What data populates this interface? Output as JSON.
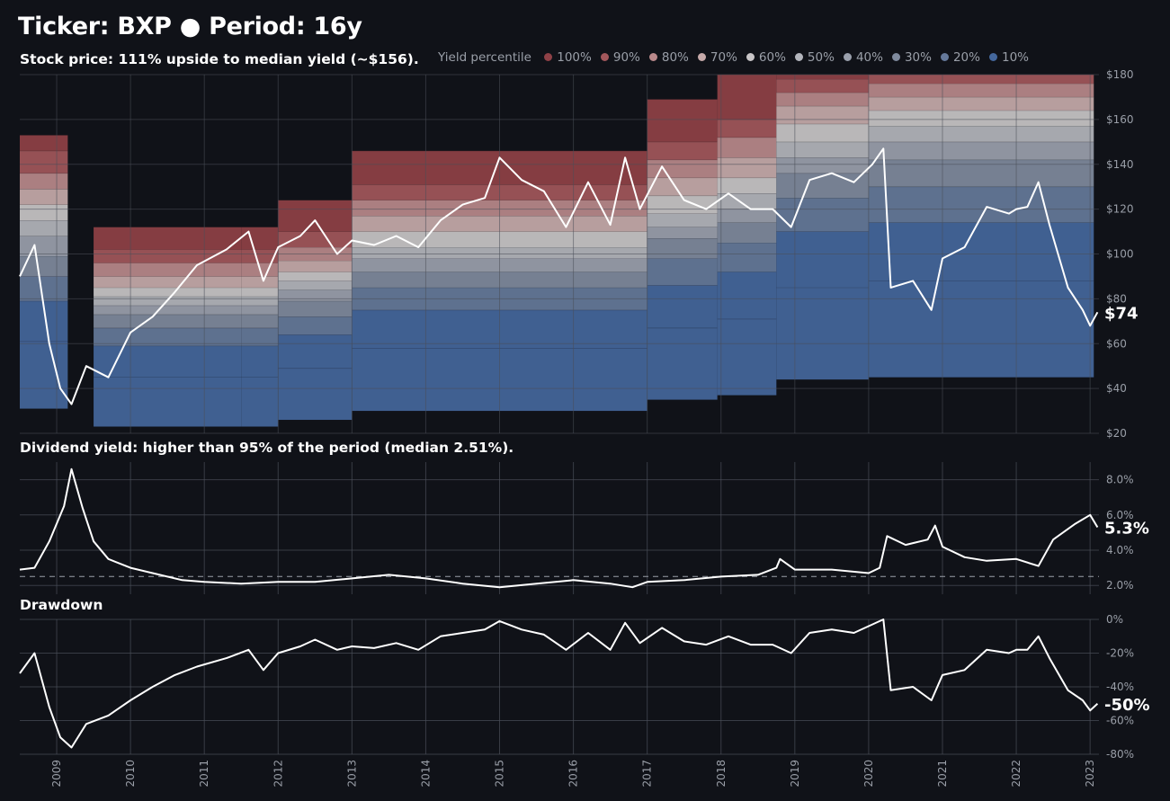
{
  "title": "Ticker: BXP  ●  Period: 16y",
  "panels": {
    "price_subtitle": "Stock price:  111% upside to median yield (~$156).",
    "yield_subtitle": "Dividend yield: higher than 95% of the period (median 2.51%).",
    "drawdown_subtitle": "Drawdown"
  },
  "legend": {
    "title": "Yield percentile",
    "items": [
      {
        "label": "100%",
        "color": "#8f4147"
      },
      {
        "label": "90%",
        "color": "#a2575b"
      },
      {
        "label": "80%",
        "color": "#b9898b"
      },
      {
        "label": "70%",
        "color": "#c6aaaa"
      },
      {
        "label": "60%",
        "color": "#c8c5c7"
      },
      {
        "label": "50%",
        "color": "#b3b5bc"
      },
      {
        "label": "40%",
        "color": "#9aa0ac"
      },
      {
        "label": "30%",
        "color": "#7f8a9d"
      },
      {
        "label": "20%",
        "color": "#65799a"
      },
      {
        "label": "10%",
        "color": "#44679c"
      }
    ]
  },
  "chart_data": [
    {
      "type": "line",
      "title": "Stock price:  111% upside to median yield (~$156).",
      "ylim": [
        20,
        180
      ],
      "yticks": [
        "$20",
        "$40",
        "$60",
        "$80",
        "$100",
        "$120",
        "$140",
        "$160",
        "$180"
      ],
      "last_label": "$74",
      "x_ticks": [
        "2009",
        "2010",
        "2011",
        "2012",
        "2013",
        "2014",
        "2015",
        "2016",
        "2017",
        "2018",
        "2019",
        "2020",
        "2021",
        "2022",
        "2023"
      ],
      "series": [
        {
          "x": [
            2008.5,
            2008.7,
            2008.9,
            2009.05,
            2009.2,
            2009.4,
            2009.7,
            2010.0,
            2010.3,
            2010.6,
            2010.9,
            2011.3,
            2011.6,
            2011.8,
            2012.0,
            2012.3,
            2012.5,
            2012.8,
            2013.0,
            2013.3,
            2013.6,
            2013.9,
            2014.2,
            2014.5,
            2014.8,
            2015.0,
            2015.3,
            2015.6,
            2015.9,
            2016.2,
            2016.5,
            2016.7,
            2016.9,
            2017.2,
            2017.5,
            2017.8,
            2018.1,
            2018.4,
            2018.7,
            2018.95,
            2019.2,
            2019.5,
            2019.8,
            2020.05,
            2020.2,
            2020.3,
            2020.6,
            2020.85,
            2021.0,
            2021.3,
            2021.6,
            2021.9,
            2022.0,
            2022.15,
            2022.3,
            2022.45,
            2022.7,
            2022.9,
            2023.0,
            2023.1
          ],
          "y": [
            90,
            104,
            60,
            40,
            33,
            50,
            45,
            65,
            72,
            83,
            95,
            102,
            110,
            88,
            103,
            108,
            115,
            100,
            106,
            104,
            108,
            103,
            115,
            122,
            125,
            143,
            133,
            128,
            112,
            132,
            113,
            143,
            120,
            139,
            124,
            120,
            127,
            120,
            120,
            112,
            133,
            136,
            132,
            140,
            147,
            85,
            88,
            75,
            98,
            103,
            121,
            118,
            120,
            121,
            132,
            113,
            85,
            75,
            68,
            74
          ]
        }
      ],
      "yield_percentile_bands": {
        "periods": [
          {
            "x": [
              2008.5,
              2009.15
            ],
            "bounds": [
              31,
              61,
              79,
              90,
              99,
              108,
              115,
              122,
              129,
              136,
              146,
              153
            ]
          },
          {
            "x": [
              2009.5,
              2011.5
            ],
            "bounds": [
              23,
              45,
              59,
              67,
              73,
              77,
              81,
              85,
              90,
              96,
              102,
              112
            ]
          },
          {
            "x": [
              2011.5,
              2012.0
            ],
            "bounds": [
              23,
              45,
              59,
              67,
              73,
              77,
              81,
              85,
              90,
              96,
              102,
              112
            ]
          },
          {
            "x": [
              2012.0,
              2013.0
            ],
            "bounds": [
              26,
              49,
              64,
              72,
              79,
              84,
              88,
              92,
              97,
              103,
              110,
              124
            ]
          },
          {
            "x": [
              2013.0,
              2017.0
            ],
            "bounds": [
              30,
              58,
              75,
              85,
              92,
              98,
              103,
              110,
              117,
              124,
              131,
              146
            ]
          },
          {
            "x": [
              2017.0,
              2017.95
            ],
            "bounds": [
              35,
              67,
              86,
              98,
              107,
              112,
              118,
              126,
              134,
              142,
              150,
              169
            ]
          },
          {
            "x": [
              2017.95,
              2018.75
            ],
            "bounds": [
              37,
              71,
              92,
              105,
              114,
              120,
              127,
              134,
              143,
              152,
              160,
              180
            ]
          },
          {
            "x": [
              2018.75,
              2020.0
            ],
            "bounds": [
              44,
              85,
              110,
              125,
              136,
              143,
              150,
              158,
              166,
              172,
              178,
              180
            ]
          },
          {
            "x": [
              2020.0,
              2023.05
            ],
            "bounds": [
              45,
              88,
              114,
              130,
              142,
              150,
              157,
              164,
              170,
              176,
              180,
              180
            ]
          }
        ]
      }
    },
    {
      "type": "line",
      "title": "Dividend yield: higher than 95% of the period (median 2.51%).",
      "ylim": [
        1.5,
        9
      ],
      "yticks": [
        "2.0%",
        "4.0%",
        "6.0%",
        "8.0%"
      ],
      "last_label": "5.3%",
      "median": 2.51,
      "series": [
        {
          "x": [
            2008.5,
            2008.7,
            2008.9,
            2009.1,
            2009.2,
            2009.35,
            2009.5,
            2009.7,
            2010.0,
            2010.3,
            2010.7,
            2011.0,
            2011.5,
            2012.0,
            2012.5,
            2013.0,
            2013.5,
            2014.0,
            2014.5,
            2015.0,
            2015.5,
            2016.0,
            2016.5,
            2016.8,
            2017.0,
            2017.5,
            2018.0,
            2018.5,
            2018.75,
            2018.8,
            2019.0,
            2019.5,
            2020.0,
            2020.15,
            2020.25,
            2020.5,
            2020.8,
            2020.9,
            2021.0,
            2021.3,
            2021.6,
            2022.0,
            2022.3,
            2022.5,
            2022.8,
            2023.0,
            2023.1
          ],
          "y": [
            2.9,
            3.0,
            4.5,
            6.5,
            8.6,
            6.4,
            4.5,
            3.5,
            3.0,
            2.7,
            2.3,
            2.2,
            2.1,
            2.2,
            2.2,
            2.4,
            2.6,
            2.4,
            2.1,
            1.9,
            2.1,
            2.3,
            2.1,
            1.9,
            2.2,
            2.3,
            2.5,
            2.6,
            3.0,
            3.5,
            2.9,
            2.9,
            2.7,
            3.0,
            4.8,
            4.3,
            4.6,
            5.4,
            4.2,
            3.6,
            3.4,
            3.5,
            3.1,
            4.6,
            5.5,
            6.0,
            5.3
          ]
        }
      ]
    },
    {
      "type": "line",
      "title": "Drawdown",
      "ylim": [
        -80,
        0
      ],
      "yticks": [
        "-80%",
        "-60%",
        "-40%",
        "-20%",
        "0%"
      ],
      "last_label": "-50%",
      "series": [
        {
          "x": [
            2008.5,
            2008.7,
            2008.9,
            2009.05,
            2009.2,
            2009.4,
            2009.7,
            2010.0,
            2010.3,
            2010.6,
            2010.9,
            2011.3,
            2011.6,
            2011.8,
            2012.0,
            2012.3,
            2012.5,
            2012.8,
            2013.0,
            2013.3,
            2013.6,
            2013.9,
            2014.2,
            2014.5,
            2014.8,
            2015.0,
            2015.3,
            2015.6,
            2015.9,
            2016.2,
            2016.5,
            2016.7,
            2016.9,
            2017.2,
            2017.5,
            2017.8,
            2018.1,
            2018.4,
            2018.7,
            2018.95,
            2019.2,
            2019.5,
            2019.8,
            2020.05,
            2020.2,
            2020.3,
            2020.6,
            2020.85,
            2021.0,
            2021.3,
            2021.6,
            2021.9,
            2022.0,
            2022.15,
            2022.3,
            2022.45,
            2022.7,
            2022.9,
            2023.0,
            2023.1
          ],
          "y": [
            -32,
            -20,
            -52,
            -70,
            -76,
            -62,
            -57,
            -48,
            -40,
            -33,
            -28,
            -23,
            -18,
            -30,
            -20,
            -16,
            -12,
            -18,
            -16,
            -17,
            -14,
            -18,
            -10,
            -8,
            -6,
            -1,
            -6,
            -9,
            -18,
            -8,
            -18,
            -2,
            -14,
            -5,
            -13,
            -15,
            -10,
            -15,
            -15,
            -20,
            -8,
            -6,
            -8,
            -3,
            0,
            -42,
            -40,
            -48,
            -33,
            -30,
            -18,
            -20,
            -18,
            -18,
            -10,
            -23,
            -42,
            -48,
            -54,
            -50
          ]
        }
      ]
    }
  ]
}
